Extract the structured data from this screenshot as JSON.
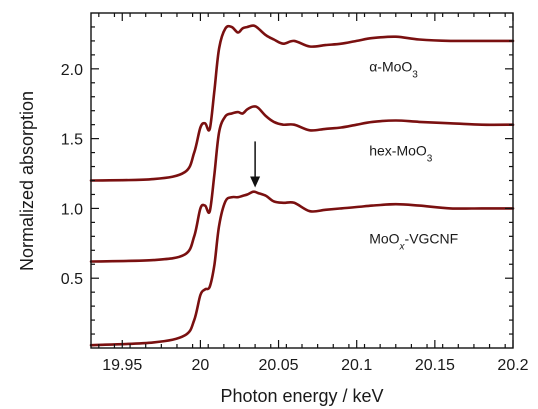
{
  "chart_data": {
    "type": "line",
    "xlabel": "Photon energy / keV",
    "ylabel": "Normalized absorption",
    "xlim": [
      19.93,
      20.2
    ],
    "ylim": [
      0.0,
      2.4
    ],
    "xticks": [
      19.95,
      20.0,
      20.05,
      20.1,
      20.15,
      20.2
    ],
    "xtick_labels": [
      "19.95",
      "20",
      "20.05",
      "20.1",
      "20.15",
      "20.2"
    ],
    "yticks": [
      0.5,
      1.0,
      1.5,
      2.0
    ],
    "ytick_labels": [
      "0.5",
      "1.0",
      "1.5",
      "2.0"
    ],
    "grid": false,
    "legend": "none",
    "colors": {
      "line": "#7a1010",
      "axis": "#111111"
    },
    "series": [
      {
        "label_parts": [
          {
            "t": "MoO",
            "sub": false
          },
          {
            "t": "x",
            "sub": true,
            "italic": true
          },
          {
            "t": "-VGCNF",
            "sub": false
          }
        ],
        "label_x": 20.108,
        "label_y": 0.75,
        "offset": 0.0,
        "x": [
          19.93,
          19.97,
          19.99,
          19.996,
          20.0,
          20.003,
          20.006,
          20.009,
          20.012,
          20.016,
          20.02,
          20.024,
          20.027,
          20.03,
          20.034,
          20.037,
          20.042,
          20.047,
          20.053,
          20.06,
          20.07,
          20.08,
          20.09,
          20.1,
          20.11,
          20.125,
          20.14,
          20.16,
          20.18,
          20.2
        ],
        "y": [
          0.02,
          0.04,
          0.09,
          0.2,
          0.38,
          0.42,
          0.44,
          0.6,
          0.88,
          1.05,
          1.08,
          1.08,
          1.09,
          1.1,
          1.12,
          1.11,
          1.09,
          1.05,
          1.04,
          1.04,
          0.98,
          0.99,
          1.0,
          1.01,
          1.02,
          1.03,
          1.02,
          1.0,
          1.0,
          1.0
        ]
      },
      {
        "label_parts": [
          {
            "t": "hex-MoO",
            "sub": false
          },
          {
            "t": "3",
            "sub": true
          }
        ],
        "label_x": 20.108,
        "label_y": 1.38,
        "offset": 0.6,
        "x": [
          19.93,
          19.97,
          19.99,
          19.996,
          20.0,
          20.003,
          20.006,
          20.009,
          20.012,
          20.016,
          20.02,
          20.024,
          20.027,
          20.03,
          20.034,
          20.037,
          20.042,
          20.047,
          20.053,
          20.06,
          20.07,
          20.08,
          20.09,
          20.1,
          20.11,
          20.125,
          20.14,
          20.16,
          20.18,
          20.2
        ],
        "y": [
          0.62,
          0.63,
          0.67,
          0.8,
          1.0,
          1.02,
          0.98,
          1.25,
          1.55,
          1.66,
          1.68,
          1.69,
          1.68,
          1.71,
          1.73,
          1.72,
          1.66,
          1.62,
          1.6,
          1.6,
          1.56,
          1.57,
          1.58,
          1.6,
          1.62,
          1.63,
          1.62,
          1.61,
          1.6,
          1.6
        ]
      },
      {
        "label_parts": [
          {
            "t": "α-MoO",
            "sub": false
          },
          {
            "t": "3",
            "sub": true
          }
        ],
        "label_x": 20.108,
        "label_y": 1.98,
        "offset": 1.2,
        "x": [
          19.93,
          19.97,
          19.99,
          19.996,
          20.0,
          20.003,
          20.006,
          20.009,
          20.012,
          20.016,
          20.02,
          20.024,
          20.027,
          20.03,
          20.034,
          20.037,
          20.042,
          20.047,
          20.053,
          20.06,
          20.07,
          20.08,
          20.09,
          20.1,
          20.11,
          20.125,
          20.14,
          20.16,
          20.18,
          20.2
        ],
        "y": [
          1.2,
          1.21,
          1.26,
          1.4,
          1.58,
          1.61,
          1.57,
          1.85,
          2.15,
          2.29,
          2.3,
          2.26,
          2.29,
          2.3,
          2.31,
          2.29,
          2.24,
          2.21,
          2.18,
          2.2,
          2.16,
          2.17,
          2.18,
          2.2,
          2.22,
          2.23,
          2.21,
          2.2,
          2.2,
          2.2
        ]
      }
    ],
    "annotation": {
      "type": "arrow",
      "x": 20.035,
      "y_from": 1.48,
      "y_to": 1.15
    }
  }
}
